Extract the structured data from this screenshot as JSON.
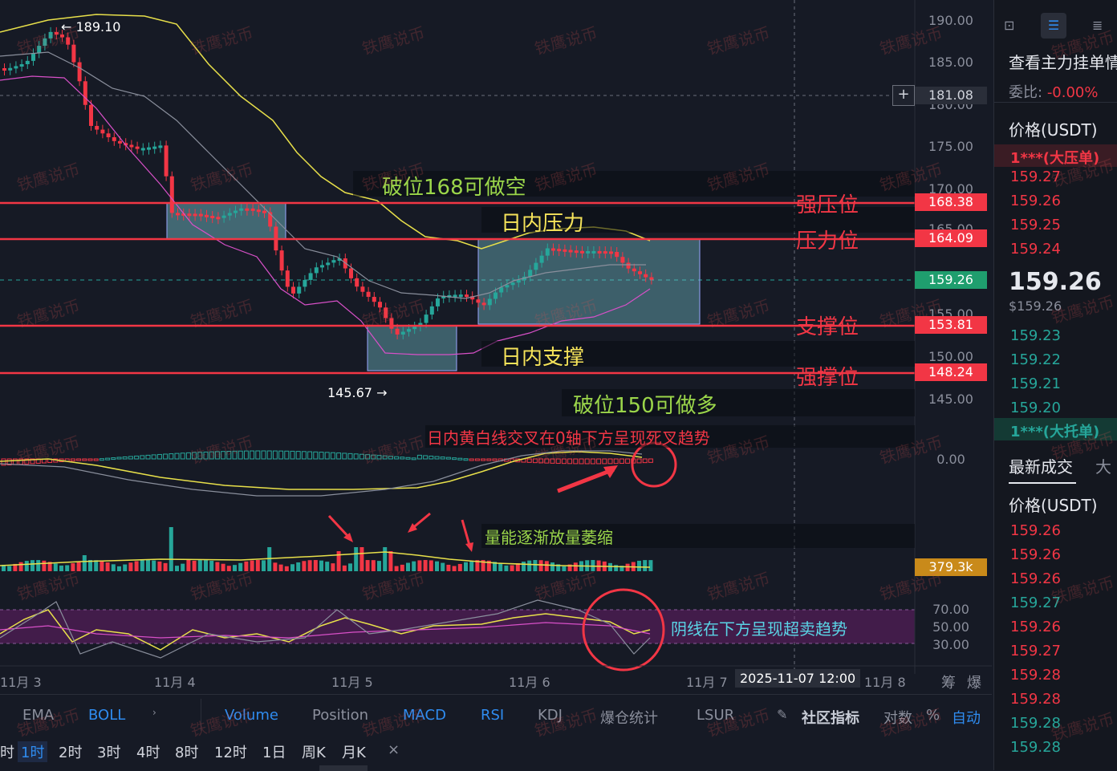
{
  "colors": {
    "up": "#26a69a",
    "down": "#f23645",
    "boll": "#e8e04a",
    "level": "#f23645",
    "panel_bg": "#161a25",
    "accent": "#2f8cf0"
  },
  "chart_data": {
    "type": "candlestick",
    "y_axis_ticks": [
      "190.00",
      "185.00",
      "180.00",
      "175.00",
      "170.00",
      "165.00",
      "155.00",
      "150.00",
      "145.00"
    ],
    "crosshair_price": "181.08",
    "high_marker": "189.10",
    "low_marker": "145.67",
    "levels": [
      {
        "price": "168.38",
        "label": "强压位"
      },
      {
        "price": "164.09",
        "label": "压力位"
      },
      {
        "price": "153.81",
        "label": "支撑位"
      },
      {
        "price": "148.24",
        "label": "强撑位"
      }
    ],
    "current_price": "159.26",
    "macd_zero_label": "0.00",
    "volume_label": "379.3k",
    "rsi_ticks": [
      "70.00",
      "50.00",
      "30.00"
    ],
    "x_axis_labels": [
      "11月 3",
      "11月 4",
      "11月 5",
      "11月 6",
      "11月 7",
      "2025-11-07 12:00",
      "11月 8"
    ],
    "axis_extra": [
      "筹",
      "爆"
    ]
  },
  "annotations": {
    "break_short": "破位168可做空",
    "intraday_resistance": "日内压力",
    "intraday_support": "日内支撑",
    "break_long": "破位150可做多",
    "macd_note": "日内黄白线交叉在0轴下方呈现死叉趋势",
    "volume_note": "量能逐渐放量萎缩",
    "rsi_note": "阴线在下方呈现超卖趋势",
    "watermark": "铁鹰说币"
  },
  "indicator_tabs": [
    "EMA",
    "BOLL",
    "Volume",
    "Position",
    "MACD",
    "RSI",
    "KDJ",
    "爆仓统计",
    "LSUR"
  ],
  "indicator_tabs_active": [
    "BOLL",
    "Volume",
    "MACD",
    "RSI"
  ],
  "indicator_right": {
    "community": "社区指标",
    "log": "对数",
    "pct": "%",
    "auto": "自动"
  },
  "timeframes": [
    "时",
    "1时",
    "2时",
    "3时",
    "4时",
    "8时",
    "12时",
    "1日",
    "周K",
    "月K"
  ],
  "timeframe_active": "1时",
  "orderbook": {
    "title": "查看主力挂单情",
    "ratio_label": "委比:",
    "ratio_value": "-0.00%",
    "price_header": "价格(USDT)",
    "ask_big": "1***(大压单)",
    "asks": [
      "159.27",
      "159.26",
      "159.25",
      "159.24"
    ],
    "last_price": "159.26",
    "last_price_usd": "$159.26",
    "bids": [
      "159.23",
      "159.22",
      "159.21",
      "159.20"
    ],
    "bid_big": "1***(大托单)",
    "trades_title": "最新成交",
    "trades_tab2": "大",
    "trades_header": "价格(USDT)",
    "trades": [
      {
        "p": "159.26",
        "side": "down"
      },
      {
        "p": "159.26",
        "side": "down"
      },
      {
        "p": "159.26",
        "side": "down"
      },
      {
        "p": "159.27",
        "side": "up"
      },
      {
        "p": "159.26",
        "side": "down"
      },
      {
        "p": "159.27",
        "side": "down"
      },
      {
        "p": "159.28",
        "side": "down"
      },
      {
        "p": "159.28",
        "side": "down"
      },
      {
        "p": "159.28",
        "side": "up"
      },
      {
        "p": "159.28",
        "side": "up"
      }
    ]
  }
}
